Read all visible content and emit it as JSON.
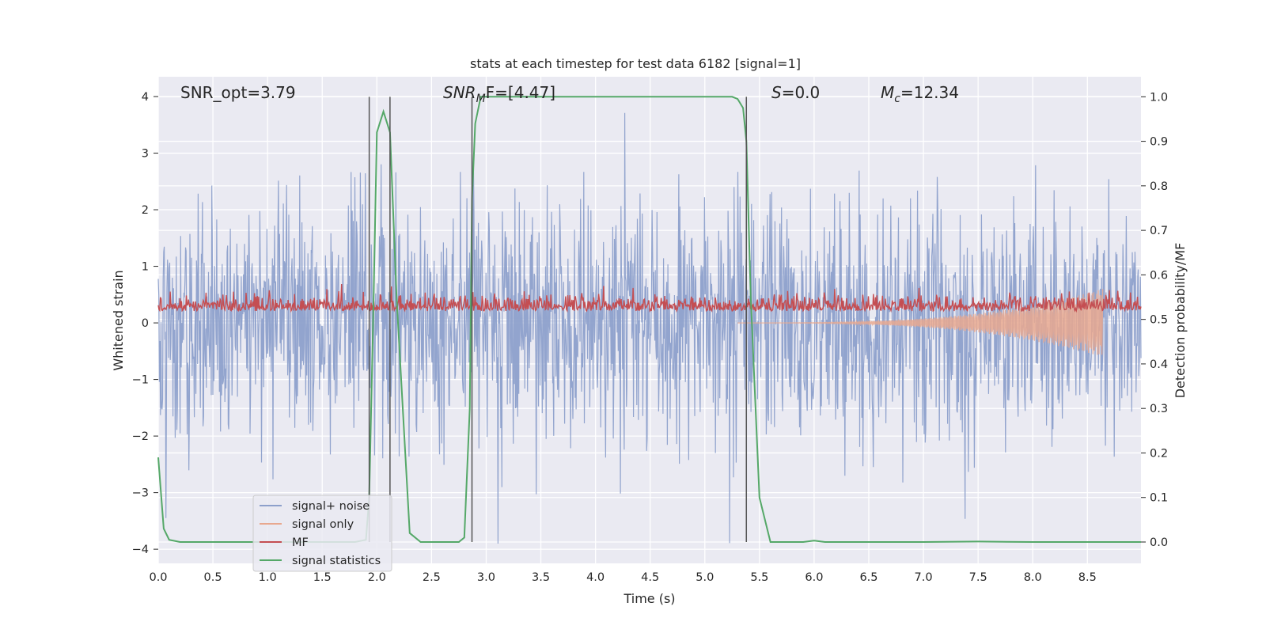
{
  "chart_data": {
    "type": "line",
    "title": "stats at each timestep for test data 6182 [signal=1]",
    "xlabel": "Time (s)",
    "ylabel_left": "Whitened strain",
    "ylabel_right": "Detection probability/MF",
    "xlim": [
      0.0,
      8.99
    ],
    "ylim_left": [
      -4.25,
      4.35
    ],
    "ylim_right": [
      -0.048,
      1.045
    ],
    "x_ticks": [
      "0.0",
      "0.5",
      "1.0",
      "1.5",
      "2.0",
      "2.5",
      "3.0",
      "3.5",
      "4.0",
      "4.5",
      "5.0",
      "5.5",
      "6.0",
      "6.5",
      "7.0",
      "7.5",
      "8.0",
      "8.5"
    ],
    "y_ticks_left": [
      "4",
      "3",
      "2",
      "1",
      "0",
      "−1",
      "−2",
      "−3",
      "−4"
    ],
    "y_ticks_left_values": [
      4,
      3,
      2,
      1,
      0,
      -1,
      -2,
      -3,
      -4
    ],
    "y_ticks_right": [
      "1.0",
      "0.9",
      "0.8",
      "0.7",
      "0.6",
      "0.5",
      "0.4",
      "0.3",
      "0.2",
      "0.1",
      "0.0"
    ],
    "y_ticks_right_values": [
      1.0,
      0.9,
      0.8,
      0.7,
      0.6,
      0.5,
      0.4,
      0.3,
      0.2,
      0.1,
      0.0
    ],
    "grid": true,
    "legend_position": "lower-left",
    "annotations": {
      "snr_opt": "SNR_opt=3.79",
      "snr_mf_main": "SNR",
      "snr_mf_sub": "M",
      "snr_mf_rest": "F=[4.47]",
      "s_main": "S",
      "s_rest": "=0.0",
      "mc_main": "M",
      "mc_sub": "c",
      "mc_rest": "=12.34"
    },
    "vertical_lines_x": [
      1.93,
      2.12,
      2.87,
      5.38
    ],
    "series": [
      {
        "name": "signal+ noise",
        "axis": "left",
        "color": "#8da0cb",
        "description_stats": {
          "mean": 0.0,
          "std": 1.05,
          "max": 4.0,
          "min": -3.9,
          "n": 1800
        }
      },
      {
        "name": "signal only",
        "axis": "left",
        "color": "#e8a88f",
        "chirp_start": 5.3,
        "chirp_end": 8.64,
        "chirp_peak_amplitude": 0.6
      },
      {
        "name": "MF",
        "axis": "left",
        "color": "#c44e52",
        "baseline": 0.25,
        "max": 0.95,
        "min": 0.05
      },
      {
        "name": "signal statistics",
        "axis": "right",
        "color": "#55a868",
        "x": [
          0.0,
          0.05,
          0.1,
          0.2,
          0.5,
          1.0,
          1.5,
          1.8,
          1.9,
          1.93,
          1.97,
          2.0,
          2.06,
          2.12,
          2.18,
          2.3,
          2.4,
          2.6,
          2.75,
          2.8,
          2.85,
          2.87,
          2.9,
          2.95,
          3.0,
          3.5,
          4.0,
          4.5,
          5.0,
          5.25,
          5.3,
          5.35,
          5.38,
          5.42,
          5.5,
          5.6,
          5.9,
          6.0,
          6.1,
          6.5,
          7.0,
          7.5,
          8.0,
          8.5,
          8.99
        ],
        "y": [
          0.19,
          0.03,
          0.005,
          0.0,
          0.0,
          0.0,
          0.0,
          0.0,
          0.005,
          0.1,
          0.55,
          0.92,
          0.967,
          0.92,
          0.55,
          0.02,
          0.0,
          0.0,
          0.0,
          0.01,
          0.3,
          0.77,
          0.94,
          1.0,
          1.0,
          1.0,
          1.0,
          1.0,
          1.0,
          1.0,
          0.995,
          0.975,
          0.9,
          0.55,
          0.1,
          0.0,
          0.0,
          0.003,
          0.0,
          0.0,
          0.0,
          0.001,
          0.0,
          0.0,
          0.0
        ]
      }
    ]
  }
}
